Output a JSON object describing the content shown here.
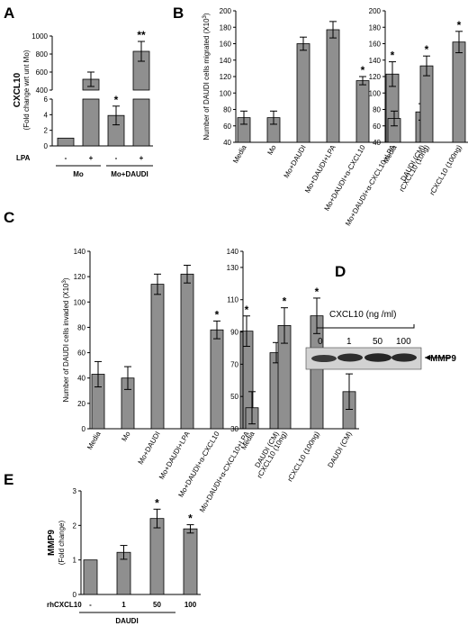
{
  "panels": {
    "A": "A",
    "B": "B",
    "C": "C",
    "D": "D",
    "E": "E"
  },
  "chart_data": [
    {
      "id": "A",
      "type": "bar",
      "ylabel": "CXCL10",
      "ylabel2": "(Fold change wrt unt Mo)",
      "categories": [
        "-",
        "+",
        "-",
        "+"
      ],
      "row_label": "LPA",
      "groups": [
        {
          "label": "Mo",
          "span": [
            0,
            1
          ]
        },
        {
          "label": "Mo+DAUDI",
          "span": [
            2,
            3
          ]
        }
      ],
      "values": [
        1,
        520,
        3.9,
        830
      ],
      "errors": [
        0,
        80,
        1.2,
        110
      ],
      "stars": [
        "",
        "",
        "*",
        "**"
      ],
      "ylim_low": [
        0,
        6
      ],
      "ylim_high": [
        400,
        1000
      ],
      "yticks_low": [
        0,
        2,
        4,
        6
      ],
      "yticks_high": [
        400,
        600,
        800,
        1000
      ]
    },
    {
      "id": "B1",
      "type": "bar",
      "ylabel": "Number of DAUDI cells migrated (X10",
      "ylabel_sup": "3",
      "categories": [
        "Media",
        "Mo",
        "Mo+DAUDI",
        "Mo+DAUDI+LPA",
        "Mo+DAUDI+α-CXCL10",
        "Mo+DAUDI+α-CXCL10+LPA",
        "DAUDI (CM)"
      ],
      "values": [
        70,
        70,
        160,
        177,
        115,
        123,
        77
      ],
      "errors": [
        8,
        8,
        8,
        10,
        5,
        15,
        10
      ],
      "stars": [
        "",
        "",
        "",
        "",
        "*",
        "*",
        ""
      ],
      "ylim": [
        40,
        200
      ],
      "yticks": [
        40,
        60,
        80,
        100,
        120,
        140,
        160,
        180,
        200
      ]
    },
    {
      "id": "B2",
      "type": "bar",
      "categories": [
        "Media",
        "rCXCL10 (10ng)",
        "rCXCL10 (100ng)",
        "DAUDI (CM)"
      ],
      "values": [
        69,
        133,
        162,
        77
      ],
      "errors": [
        9,
        12,
        13,
        10
      ],
      "stars": [
        "",
        "*",
        "*",
        ""
      ],
      "ylim": [
        40,
        200
      ],
      "yticks": [
        40,
        60,
        80,
        100,
        120,
        140,
        160,
        180,
        200
      ]
    },
    {
      "id": "C1",
      "type": "bar",
      "ylabel": "Number of DAUDI cells invaded (X10",
      "ylabel_sup": "3",
      "categories": [
        "Media",
        "Mo",
        "Mo+DAUDI",
        "Mo+DAUDI+LPA",
        "Mo+DAUDI+α-CXCL10",
        "Mo+DAUDI+α-CXCL10+LPA",
        "DAUDI (CM)"
      ],
      "values": [
        43,
        40,
        114,
        122,
        78,
        77,
        60
      ],
      "errors": [
        10,
        9,
        8,
        7,
        7,
        12,
        8
      ],
      "stars": [
        "",
        "",
        "",
        "",
        "*",
        "*",
        ""
      ],
      "ylim": [
        0,
        140
      ],
      "yticks": [
        0,
        20,
        40,
        60,
        80,
        100,
        120,
        140
      ]
    },
    {
      "id": "C2",
      "type": "bar",
      "categories": [
        "Media",
        "rCXCL10 (10ng)",
        "rCXCL10 (100ng)",
        "DAUDI (CM)"
      ],
      "values": [
        43,
        94,
        100,
        53
      ],
      "errors": [
        10,
        11,
        11,
        11
      ],
      "stars": [
        "",
        "*",
        "*",
        ""
      ],
      "ylim": [
        30,
        140
      ],
      "yticks": [
        30,
        50,
        70,
        90,
        110,
        130,
        140
      ],
      "ytick_labels": [
        "30",
        "50",
        "70",
        "90",
        "110",
        "130",
        "140"
      ]
    },
    {
      "id": "E",
      "type": "bar",
      "ylabel": "MMP9",
      "ylabel2": "(Fold change)",
      "row_label": "rhCXCL10",
      "categories": [
        "-",
        "1",
        "50",
        "100"
      ],
      "group_label": "DAUDI",
      "values": [
        1.0,
        1.22,
        2.2,
        1.9
      ],
      "errors": [
        0,
        0.2,
        0.27,
        0.12
      ],
      "stars": [
        "",
        "",
        "*",
        "*"
      ],
      "ylim": [
        0,
        3
      ],
      "yticks": [
        0,
        1,
        2,
        3
      ]
    }
  ],
  "blot": {
    "title": "CXCL10 (ng /ml)",
    "lanes": [
      "0",
      "1",
      "50",
      "100"
    ],
    "band_label": "MMP9"
  }
}
